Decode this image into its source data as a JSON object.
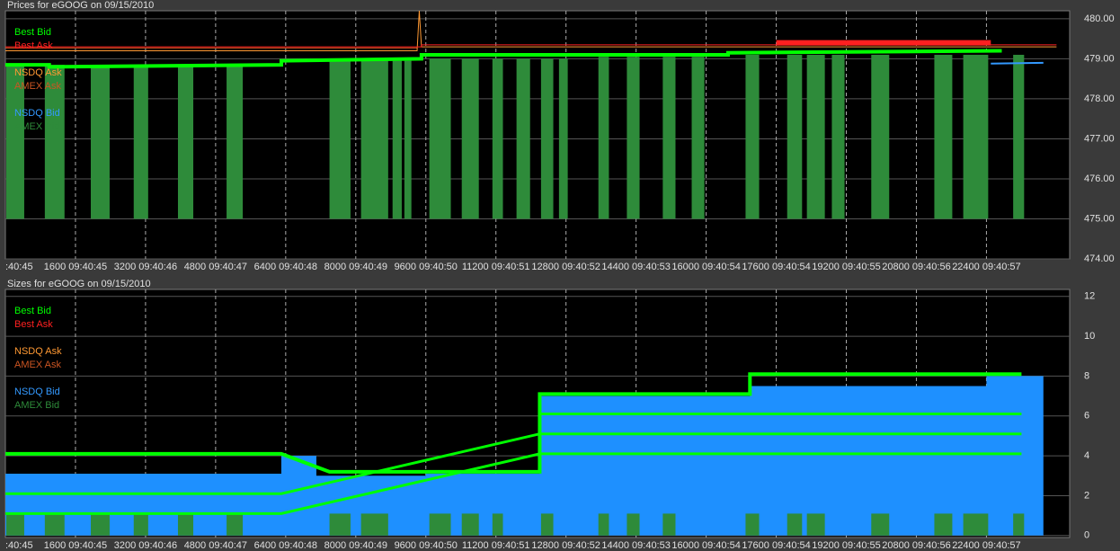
{
  "chart_data": [
    {
      "type": "line",
      "title": "Prices for  eGOOG  on  09/15/2010",
      "xlim": [
        0,
        24300
      ],
      "ylim": [
        474,
        480.2
      ],
      "grid": true,
      "xticks": [
        {
          "value": 0,
          "label": ":40:45"
        },
        {
          "value": 1600,
          "label": "1600 09:40:45"
        },
        {
          "value": 3200,
          "label": "3200 09:40:46"
        },
        {
          "value": 4800,
          "label": "4800 09:40:47"
        },
        {
          "value": 6400,
          "label": "6400 09:40:48"
        },
        {
          "value": 8000,
          "label": "8000 09:40:49"
        },
        {
          "value": 9600,
          "label": "9600 09:40:50"
        },
        {
          "value": 11200,
          "label": "11200 09:40:51"
        },
        {
          "value": 12800,
          "label": "12800 09:40:52"
        },
        {
          "value": 14400,
          "label": "14400 09:40:53"
        },
        {
          "value": 16000,
          "label": "16000 09:40:54"
        },
        {
          "value": 17600,
          "label": "17600 09:40:54"
        },
        {
          "value": 19200,
          "label": "19200 09:40:55"
        },
        {
          "value": 20800,
          "label": "20800 09:40:56"
        },
        {
          "value": 22400,
          "label": "22400 09:40:57"
        }
      ],
      "yticks": [
        {
          "value": 474,
          "label": "474.00"
        },
        {
          "value": 475,
          "label": "475.00"
        },
        {
          "value": 476,
          "label": "476.00"
        },
        {
          "value": 477,
          "label": "477.00"
        },
        {
          "value": 478,
          "label": "478.00"
        },
        {
          "value": 479,
          "label": "479.00"
        },
        {
          "value": 480,
          "label": "480.00"
        }
      ],
      "legend": [
        {
          "name": "Best Bid",
          "color": "#00ff00"
        },
        {
          "name": "Best Ask",
          "color": "#ff2020"
        },
        {
          "name": "NSDQ Ask",
          "color": "#ff9933"
        },
        {
          "name": "AMEX Ask",
          "color": "#cc5522"
        },
        {
          "name": "NSDQ Bid",
          "color": "#3399ff"
        },
        {
          "name": "AMEX Bid",
          "color": "#2e8b3a"
        }
      ],
      "series": [
        {
          "style": "blocks",
          "color": "#2e8b3a",
          "low": 475,
          "x": [
            20,
            900,
            1950,
            2930,
            3940,
            5050,
            7400,
            8120,
            8840,
            9110,
            9680,
            10420,
            11120,
            11670,
            12230,
            12640,
            13540,
            14190,
            15010,
            15670,
            16900,
            17850,
            18300,
            18870,
            19770,
            21210,
            21870,
            23010
          ],
          "x_end": [
            430,
            1350,
            2380,
            3260,
            4290,
            5420,
            7880,
            8740,
            9050,
            9270,
            10170,
            10810,
            11360,
            11980,
            12510,
            12840,
            13780,
            14480,
            15300,
            15960,
            17210,
            18190,
            18710,
            19160,
            20180,
            21620,
            22440,
            23260
          ],
          "high": [
            478.85,
            478.85,
            478.85,
            478.85,
            478.85,
            478.85,
            478.95,
            478.95,
            478.95,
            478.95,
            479.0,
            479.0,
            479.0,
            479.0,
            479.0,
            479.0,
            479.05,
            479.05,
            479.05,
            479.05,
            479.1,
            479.1,
            479.1,
            479.1,
            479.1,
            479.1,
            479.1,
            479.1
          ]
        },
        {
          "style": "line",
          "color": "#cc5522",
          "width": 1,
          "x": [
            0,
            9400
          ],
          "values": [
            479.27,
            479.27
          ]
        },
        {
          "style": "line",
          "color": "#ff9933",
          "width": 1,
          "x": [
            0,
            9400,
            9450,
            9500,
            24000
          ],
          "values": [
            479.2,
            479.2,
            480.2,
            479.3,
            479.3
          ]
        },
        {
          "style": "line",
          "color": "#ff2020",
          "width": 1,
          "x": [
            0,
            9500,
            9500,
            24000
          ],
          "values": [
            479.3,
            479.3,
            479.35,
            479.35
          ]
        },
        {
          "style": "line",
          "color": "#ff2020",
          "width": 6,
          "x": [
            17600,
            22500
          ],
          "values": [
            479.4,
            479.4
          ]
        },
        {
          "style": "line",
          "color": "#3399ff",
          "width": 2,
          "x": [
            6300,
            8000,
            22500,
            23700
          ],
          "values": [
            479.0,
            null,
            478.88,
            478.9
          ]
        },
        {
          "style": "line",
          "color": "#00ff00",
          "width": 4,
          "x": [
            0,
            1000,
            1000,
            6300,
            6300,
            9500,
            9500,
            16500,
            16500,
            22750
          ],
          "values": [
            478.85,
            478.85,
            478.8,
            478.85,
            478.95,
            479.0,
            479.1,
            479.1,
            479.15,
            479.2
          ]
        }
      ]
    },
    {
      "type": "line",
      "title": "Sizes for  eGOOG  on  09/15/2010",
      "xlim": [
        0,
        24300
      ],
      "ylim": [
        -0.1,
        12.35
      ],
      "grid": true,
      "xticks": [
        {
          "value": 0,
          "label": ":40:45"
        },
        {
          "value": 1600,
          "label": "1600 09:40:45"
        },
        {
          "value": 3200,
          "label": "3200 09:40:46"
        },
        {
          "value": 4800,
          "label": "4800 09:40:47"
        },
        {
          "value": 6400,
          "label": "6400 09:40:48"
        },
        {
          "value": 8000,
          "label": "8000 09:40:49"
        },
        {
          "value": 9600,
          "label": "9600 09:40:50"
        },
        {
          "value": 11200,
          "label": "11200 09:40:51"
        },
        {
          "value": 12800,
          "label": "12800 09:40:52"
        },
        {
          "value": 14400,
          "label": "14400 09:40:53"
        },
        {
          "value": 16000,
          "label": "16000 09:40:54"
        },
        {
          "value": 17600,
          "label": "17600 09:40:54"
        },
        {
          "value": 19200,
          "label": "19200 09:40:55"
        },
        {
          "value": 20800,
          "label": "20800 09:40:56"
        },
        {
          "value": 22400,
          "label": "22400 09:40:57"
        }
      ],
      "yticks": [
        0,
        2,
        4,
        6,
        8,
        10,
        12
      ],
      "legend": [
        {
          "name": "Best Bid",
          "color": "#00ff00"
        },
        {
          "name": "Best Ask",
          "color": "#ff2020"
        },
        {
          "name": "NSDQ Ask",
          "color": "#ff9933"
        },
        {
          "name": "AMEX Ask",
          "color": "#cc5522"
        },
        {
          "name": "NSDQ Bid",
          "color": "#3399ff"
        },
        {
          "name": "AMEX Bid",
          "color": "#2e8b3a"
        }
      ],
      "series": [
        {
          "style": "area",
          "color": "#1e90ff",
          "x": [
            0,
            6300,
            6300,
            7100,
            7100,
            9600,
            9600,
            12200,
            12200,
            17000,
            17000,
            22400,
            22400,
            23700,
            23700
          ],
          "values": [
            3.1,
            3.1,
            4,
            4,
            3,
            3,
            3.1,
            3.1,
            7,
            7,
            7.5,
            7.5,
            8,
            8,
            0
          ]
        },
        {
          "style": "blocks",
          "color": "#2e8b3a",
          "low": 0,
          "x": [
            20,
            900,
            1950,
            2930,
            3940,
            5050,
            7400,
            8120,
            9680,
            10420,
            11120,
            12230,
            13540,
            14190,
            15010,
            16900,
            17850,
            18300,
            19770,
            21210,
            21870,
            23010
          ],
          "x_end": [
            430,
            1350,
            2380,
            3260,
            4290,
            5420,
            7880,
            8740,
            10170,
            10810,
            11360,
            12510,
            13780,
            14480,
            15300,
            17210,
            18190,
            18710,
            20180,
            21620,
            22440,
            23260
          ],
          "high": [
            1.1,
            1.1,
            1.1,
            1.1,
            1.1,
            1.1,
            1.1,
            1.1,
            1.1,
            1.1,
            1.1,
            1.1,
            1.1,
            1.1,
            1.1,
            1.1,
            1.1,
            1.1,
            1.1,
            1.1,
            1.1,
            1.1
          ]
        },
        {
          "style": "line",
          "color": "#00ff00",
          "width": 4,
          "x": [
            0,
            6300,
            7400,
            9400,
            9600,
            12200,
            12200,
            17000,
            17000,
            23200
          ],
          "values": [
            4.1,
            4.1,
            3.2,
            3.2,
            3.2,
            3.2,
            7.1,
            7.1,
            8.1,
            8.1
          ]
        },
        {
          "style": "line",
          "color": "#00ff00",
          "width": 3,
          "x": [
            0,
            6300,
            12200,
            23200
          ],
          "values": [
            2.1,
            2.1,
            5.1,
            5.1
          ]
        },
        {
          "style": "line",
          "color": "#00ff00",
          "width": 3,
          "x": [
            0,
            6300,
            12200,
            23200
          ],
          "values": [
            1.1,
            1.1,
            4.1,
            4.1
          ]
        },
        {
          "style": "line",
          "color": "#00ff00",
          "width": 3,
          "x": [
            12200,
            23200
          ],
          "values": [
            6.1,
            6.1
          ]
        }
      ]
    }
  ]
}
